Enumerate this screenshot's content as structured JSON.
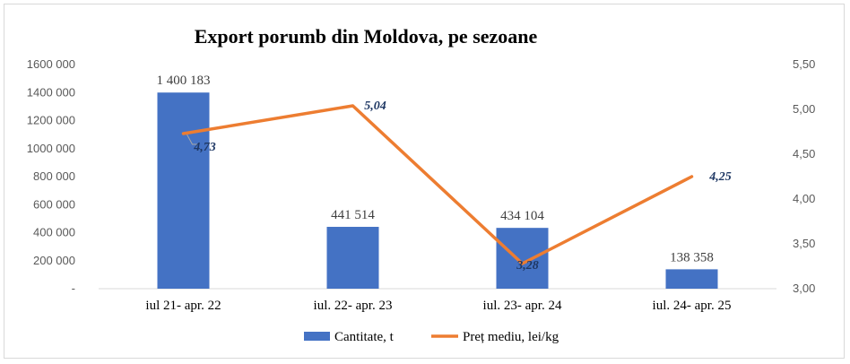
{
  "chart_data": {
    "type": "bar",
    "title": "Export porumb din Moldova, pe sezoane",
    "categories": [
      "iul 21- apr. 22",
      "iul. 22- apr. 23",
      "iul. 23- apr. 24",
      "iul. 24- apr. 25"
    ],
    "series": [
      {
        "name": "Cantitate, t",
        "type": "bar",
        "axis": "left",
        "values": [
          1400183,
          441514,
          434104,
          138358
        ],
        "labels": [
          "1 400 183",
          "441 514",
          "434 104",
          "138 358"
        ],
        "color": "#4472c4"
      },
      {
        "name": "Preț mediu, lei/kg",
        "type": "line",
        "axis": "right",
        "values": [
          4.73,
          5.04,
          3.28,
          4.25
        ],
        "labels": [
          "4,73",
          "5,04",
          "3,28",
          "4,25"
        ],
        "color": "#ed7d31"
      }
    ],
    "y_left": {
      "range": [
        0,
        1600000
      ],
      "ticks": [
        0,
        200000,
        400000,
        600000,
        800000,
        1000000,
        1200000,
        1400000,
        1600000
      ],
      "tick_labels": [
        "-",
        "200 000",
        "400 000",
        "600 000",
        "800 000",
        "1000 000",
        "1200 000",
        "1400 000",
        "1600 000"
      ]
    },
    "y_right": {
      "range": [
        3.0,
        5.5
      ],
      "ticks": [
        3.0,
        3.5,
        4.0,
        4.5,
        5.0,
        5.5
      ],
      "tick_labels": [
        "3,00",
        "3,50",
        "4,00",
        "4,50",
        "5,00",
        "5,50"
      ]
    },
    "grid": false,
    "legend": "bottom",
    "label_color": "#1f3864"
  }
}
